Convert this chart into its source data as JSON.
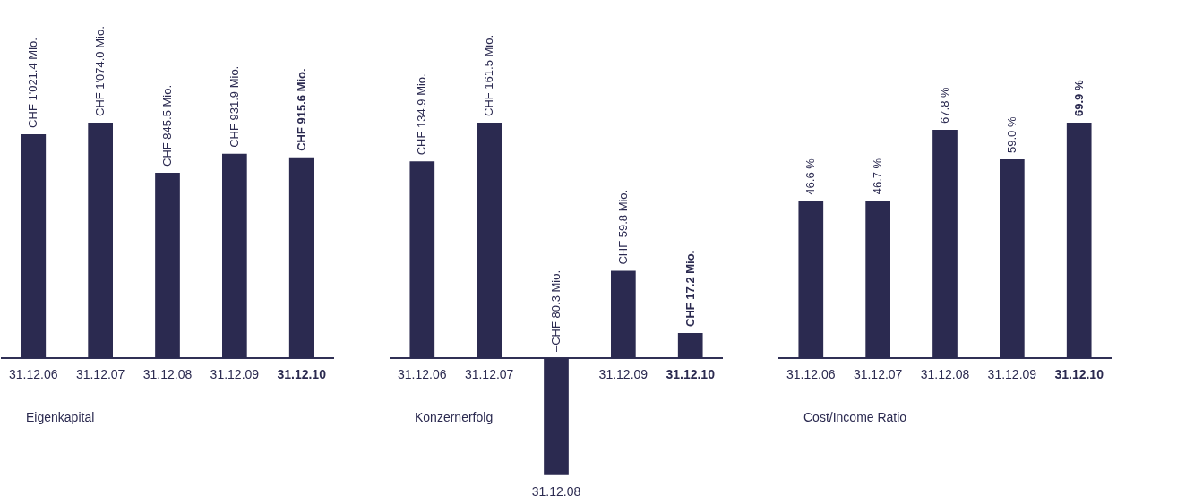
{
  "chart_data": [
    {
      "type": "bar",
      "xlabel": "Eigenkapital",
      "color": "#2b2a50",
      "categories": [
        "31.12.06",
        "31.12.07",
        "31.12.08",
        "31.12.09",
        "31.12.10"
      ],
      "values": [
        1021.4,
        1074.0,
        845.5,
        931.9,
        915.6
      ],
      "value_labels": [
        "CHF 1'021.4  Mio.",
        "CHF 1'074.0  Mio.",
        "CHF 845.5  Mio.",
        "CHF 931.9  Mio.",
        "CHF 915.6 Mio."
      ]
    },
    {
      "type": "bar",
      "xlabel": "Konzernerfolg",
      "color": "#2b2a50",
      "categories": [
        "31.12.06",
        "31.12.07",
        "31.12.08",
        "31.12.09",
        "31.12.10"
      ],
      "values": [
        134.9,
        161.5,
        -80.3,
        59.8,
        17.2
      ],
      "value_labels": [
        "CHF 134.9  Mio.",
        "CHF 161.5  Mio.",
        "–CHF 80.3  Mio.",
        "CHF 59.8  Mio.",
        "CHF 17.2 Mio."
      ]
    },
    {
      "type": "bar",
      "xlabel": "Cost/Income Ratio",
      "color": "#2b2a50",
      "categories": [
        "31.12.06",
        "31.12.07",
        "31.12.08",
        "31.12.09",
        "31.12.10"
      ],
      "values": [
        46.6,
        46.7,
        67.8,
        59.0,
        69.9
      ],
      "value_labels": [
        "46.6 %",
        "46.7 %",
        "67.8 %",
        "59.0 %",
        "69.9 %"
      ]
    }
  ]
}
